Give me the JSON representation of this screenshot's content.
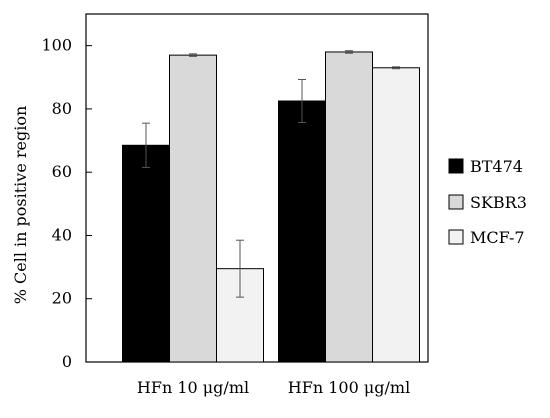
{
  "chart_data": {
    "type": "bar",
    "title": "",
    "xlabel": "",
    "ylabel": "% Cell in positive  region",
    "ylim": [
      0,
      110
    ],
    "yticks": [
      0,
      20,
      40,
      60,
      80,
      100
    ],
    "categories": [
      "HFn 10 μg/ml",
      "HFn 100 μg/ml"
    ],
    "series": [
      {
        "name": "BT474",
        "color": "#000000",
        "values": [
          68.5,
          82.5
        ],
        "errors": [
          7.0,
          6.8
        ]
      },
      {
        "name": "SKBR3",
        "color": "#d9d9d9",
        "values": [
          97.0,
          98.0
        ],
        "errors": [
          0.4,
          0.4
        ]
      },
      {
        "name": "MCF-7",
        "color": "#f2f2f2",
        "values": [
          29.5,
          93.0
        ],
        "errors": [
          9.0,
          0.3
        ]
      }
    ],
    "grid": false,
    "legend_position": "right"
  }
}
